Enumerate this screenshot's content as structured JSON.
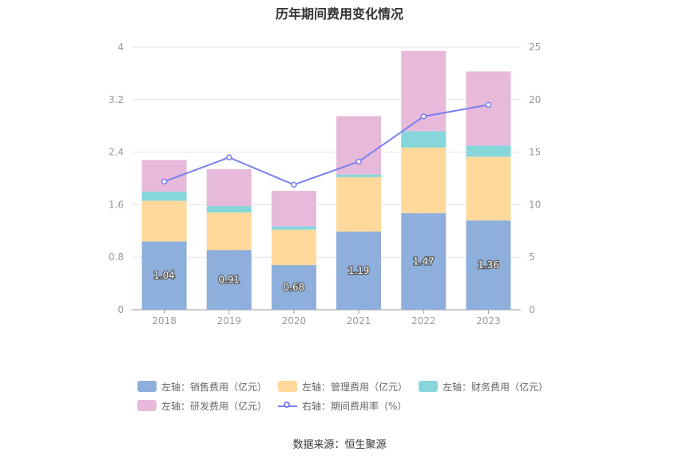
{
  "title": "历年期间费用变化情况",
  "source_label": "数据来源：",
  "source_name": "恒生聚源",
  "colors": {
    "sales": "#8eaedb",
    "admin": "#fed99b",
    "finance": "#86d6da",
    "rnd": "#e7b9da",
    "line": "#7b7ff0",
    "grid": "#e6e6e6",
    "axis_text": "#999999"
  },
  "chart_data": {
    "type": "bar",
    "stacked": true,
    "categories": [
      "2018",
      "2019",
      "2020",
      "2021",
      "2022",
      "2023"
    ],
    "left_axis": {
      "min": 0,
      "max": 4,
      "ticks": [
        "0",
        "0.8",
        "1.6",
        "2.4",
        "3.2",
        "4"
      ]
    },
    "right_axis": {
      "min": 0,
      "max": 25,
      "ticks": [
        "0",
        "5",
        "10",
        "15",
        "20",
        "25"
      ]
    },
    "series": [
      {
        "key": "sales",
        "name": "左轴：销售费用（亿元）",
        "values": [
          1.04,
          0.91,
          0.68,
          1.19,
          1.47,
          1.36
        ],
        "labels": [
          "1.04",
          "0.91",
          "0.68",
          "1.19",
          "1.47",
          "1.36"
        ]
      },
      {
        "key": "admin",
        "name": "左轴：管理费用（亿元）",
        "values": [
          0.62,
          0.57,
          0.54,
          0.83,
          1.0,
          0.97
        ]
      },
      {
        "key": "finance",
        "name": "左轴：财务费用（亿元）",
        "values": [
          0.14,
          0.1,
          0.05,
          0.04,
          0.25,
          0.17
        ]
      },
      {
        "key": "rnd",
        "name": "左轴：研发费用（亿元）",
        "values": [
          0.48,
          0.56,
          0.54,
          0.89,
          1.22,
          1.13
        ]
      }
    ],
    "line_series": {
      "name": "右轴：期间费用率（%）",
      "values": [
        12.2,
        14.5,
        11.9,
        14.1,
        18.4,
        19.5
      ]
    },
    "grid": true,
    "legend_position": "bottom"
  }
}
